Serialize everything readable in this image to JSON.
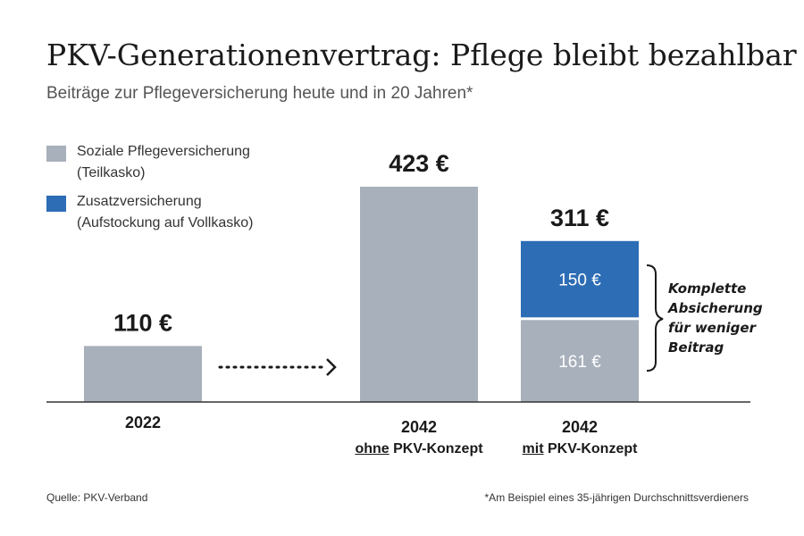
{
  "title": "PKV-Generationenvertrag: Pflege bleibt bezahlbar",
  "subtitle": "Beiträge zur Pflegeversicherung heute und in 20 Jahren*",
  "legend": [
    {
      "label": "Soziale Pflegeversicherung\n(Teilkasko)",
      "color": "#a7b0bb"
    },
    {
      "label": "Zusatzversicherung\n(Aufstockung auf Vollkasko)",
      "color": "#2d6db5"
    }
  ],
  "columns": [
    {
      "year": "2022",
      "prefix": "",
      "suffix": ""
    },
    {
      "year": "2042",
      "prefix": "ohne",
      "suffix": " PKV-Konzept"
    },
    {
      "year": "2042",
      "prefix": "mit",
      "suffix": " PKV-Konzept"
    }
  ],
  "brace_note": "Komplette\nAbsicherung\nfür weniger\nBeitrag",
  "source": "Quelle: PKV-Verband",
  "footnote": "*Am Beispiel eines 35-jährigen Durchschnittsverdieners",
  "chart_data": {
    "type": "bar",
    "stacked": true,
    "unit": "€",
    "categories": [
      "2022",
      "2042 ohne PKV-Konzept",
      "2042 mit PKV-Konzept"
    ],
    "series": [
      {
        "name": "Soziale Pflegeversicherung (Teilkasko)",
        "values": [
          110,
          423,
          161
        ],
        "color": "#a7b0bb"
      },
      {
        "name": "Zusatzversicherung (Aufstockung auf Vollkasko)",
        "values": [
          0,
          0,
          150
        ],
        "color": "#2d6db5"
      }
    ],
    "totals": [
      "110 €",
      "423 €",
      "311 €"
    ],
    "segment_labels": [
      {
        "category": 2,
        "series": 0,
        "text": "161 €"
      },
      {
        "category": 2,
        "series": 1,
        "text": "150 €"
      }
    ],
    "ylim": [
      0,
      423
    ]
  }
}
